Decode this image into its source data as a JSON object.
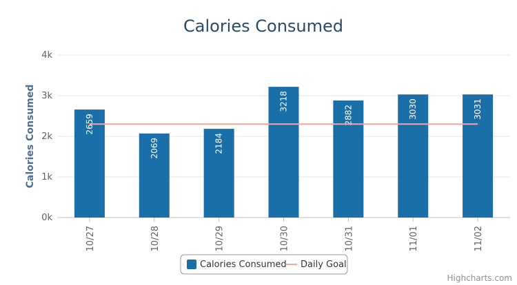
{
  "chart_data": {
    "type": "bar",
    "title": "Calories Consumed",
    "xlabel": "",
    "ylabel": "Calories Consumed",
    "categories": [
      "10/27",
      "10/28",
      "10/29",
      "10/30",
      "10/31",
      "11/01",
      "11/02"
    ],
    "series": [
      {
        "name": "Calories Consumed",
        "type": "bar",
        "color": "#1a6fa8",
        "values": [
          2659,
          2069,
          2184,
          3218,
          2882,
          3030,
          3031
        ]
      },
      {
        "name": "Daily Goal",
        "type": "line",
        "color": "#f4a5a0",
        "values": [
          2300,
          2300,
          2300,
          2300,
          2300,
          2300,
          2300
        ]
      }
    ],
    "ylim": [
      0,
      4000
    ],
    "yticks": [
      0,
      1000,
      2000,
      3000,
      4000
    ],
    "ytick_labels": [
      "0k",
      "1k",
      "2k",
      "3k",
      "4k"
    ],
    "grid": true,
    "legend_position": "bottom-center",
    "credits": "Highcharts.com"
  }
}
